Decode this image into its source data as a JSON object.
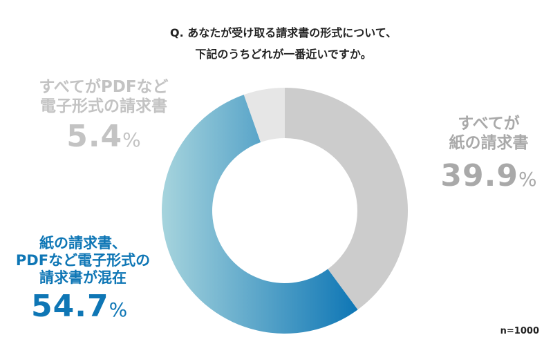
{
  "chart_data": {
    "type": "pie",
    "variant": "donut",
    "title": [
      "Q. あなたが受け取る請求書の形式について、",
      "下記のうちどれが一番近いですか。"
    ],
    "slices": [
      {
        "label": "すべてが紙の請求書",
        "label_lines": [
          "すべてが",
          "紙の請求書"
        ],
        "value": 39.9,
        "value_text": "39.9",
        "color": "#cccccc"
      },
      {
        "label": "紙の請求書、PDFなど電子形式の請求書が混在",
        "label_lines": [
          "紙の請求書、",
          "PDFなど電子形式の",
          "請求書が混在"
        ],
        "value": 54.7,
        "value_text": "54.7",
        "color": "#0e76b5",
        "gradient_from": "#a6d4dd"
      },
      {
        "label": "すべてがPDFなど電子形式の請求書",
        "label_lines": [
          "すべてがPDFなど",
          "電子形式の請求書"
        ],
        "value": 5.4,
        "value_text": "5.4",
        "color": "#e6e6e6"
      }
    ],
    "unit": "%",
    "start": "top",
    "direction": "clockwise",
    "note": "n=1000"
  }
}
